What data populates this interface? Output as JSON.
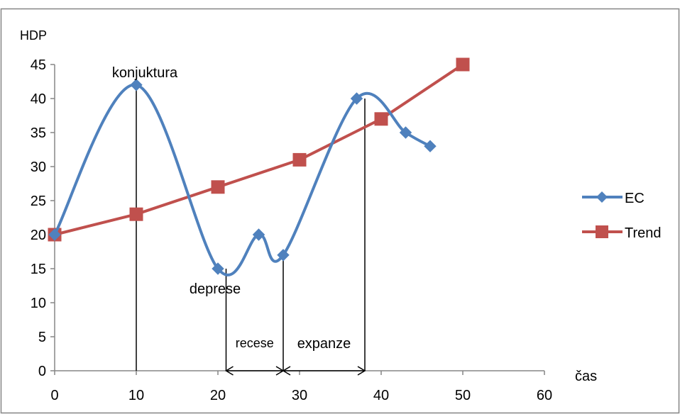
{
  "chart_data": {
    "type": "line",
    "ylabel": "HDP",
    "xlabel": "čas",
    "xlim": [
      0,
      60
    ],
    "ylim": [
      0,
      45
    ],
    "x_ticks": [
      0,
      10,
      20,
      30,
      40,
      50,
      60
    ],
    "y_ticks": [
      0,
      5,
      10,
      15,
      20,
      25,
      30,
      35,
      40,
      45
    ],
    "grid": false,
    "legend_position": "right",
    "series": [
      {
        "name": "EC",
        "color": "#4F81BD",
        "marker": "diamond",
        "smooth": true,
        "points": [
          [
            0,
            20
          ],
          [
            10,
            42
          ],
          [
            20,
            15
          ],
          [
            25,
            20
          ],
          [
            28,
            17
          ],
          [
            37,
            40
          ],
          [
            43,
            35
          ],
          [
            46,
            33
          ]
        ]
      },
      {
        "name": "Trend",
        "color": "#C0504D",
        "marker": "square",
        "smooth": false,
        "points": [
          [
            0,
            20
          ],
          [
            10,
            23
          ],
          [
            20,
            27
          ],
          [
            30,
            31
          ],
          [
            40,
            37
          ],
          [
            50,
            45
          ]
        ]
      }
    ],
    "annotations": [
      {
        "text": "konjuktura",
        "x": 10,
        "y": 42
      },
      {
        "text": "deprese",
        "x": 20,
        "y": 15
      },
      {
        "text": "recese",
        "x_from": 21,
        "x_to": 28
      },
      {
        "text": "expanze",
        "x_from": 28,
        "x_to": 38
      }
    ],
    "markers_vertical": [
      {
        "x": 10,
        "y": 42
      },
      {
        "x": 21,
        "y": 15
      },
      {
        "x": 28,
        "y": 17
      },
      {
        "x": 38,
        "y": 40
      }
    ],
    "arrow_spans": [
      {
        "x_from": 21,
        "x_to": 28,
        "y": 0
      },
      {
        "x_from": 28,
        "x_to": 38,
        "y": 0
      }
    ]
  }
}
